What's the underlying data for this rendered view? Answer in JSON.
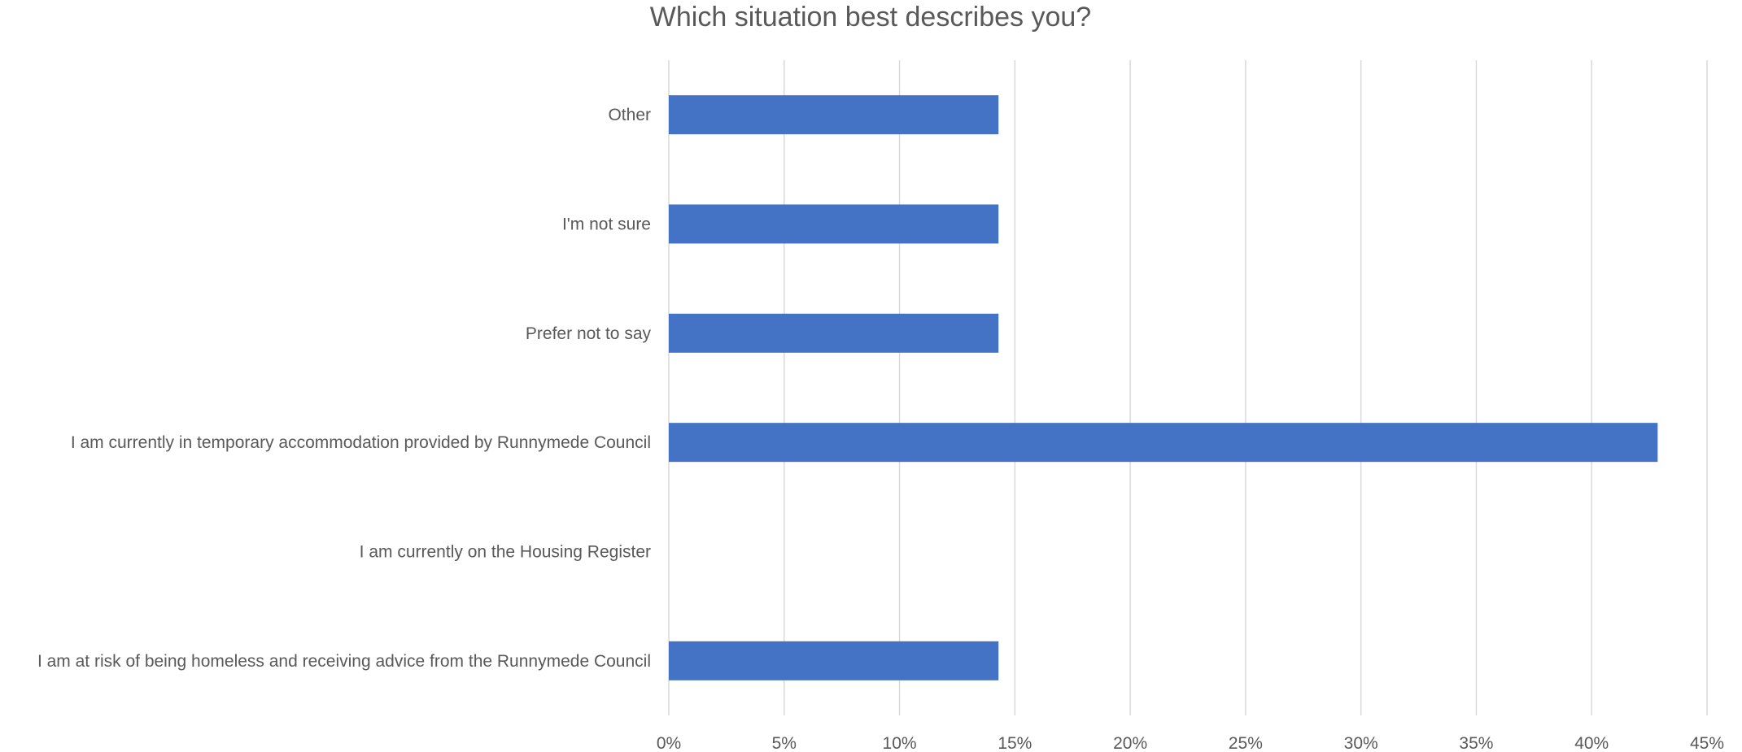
{
  "chart_data": {
    "type": "bar",
    "orientation": "horizontal",
    "title": "Which situation best describes you?",
    "xlabel": "",
    "ylabel": "",
    "categories": [
      "I am at risk of being homeless and receiving advice from the Runnymede Council",
      "I am currently on the Housing Register",
      "I am currently in temporary accommodation provided by Runnymede Council",
      "Prefer not to say",
      "I'm not sure ",
      "Other"
    ],
    "values": [
      14.29,
      0,
      42.86,
      14.29,
      14.29,
      14.29
    ],
    "xlim": [
      0,
      45
    ],
    "ticks": [
      0,
      5,
      10,
      15,
      20,
      25,
      30,
      35,
      40,
      45
    ],
    "tick_labels": [
      "0%",
      "5%",
      "10%",
      "15%",
      "20%",
      "25%",
      "30%",
      "35%",
      "40%",
      "45%"
    ],
    "bar_color": "#4472C4",
    "grid": true,
    "legend": "none"
  }
}
